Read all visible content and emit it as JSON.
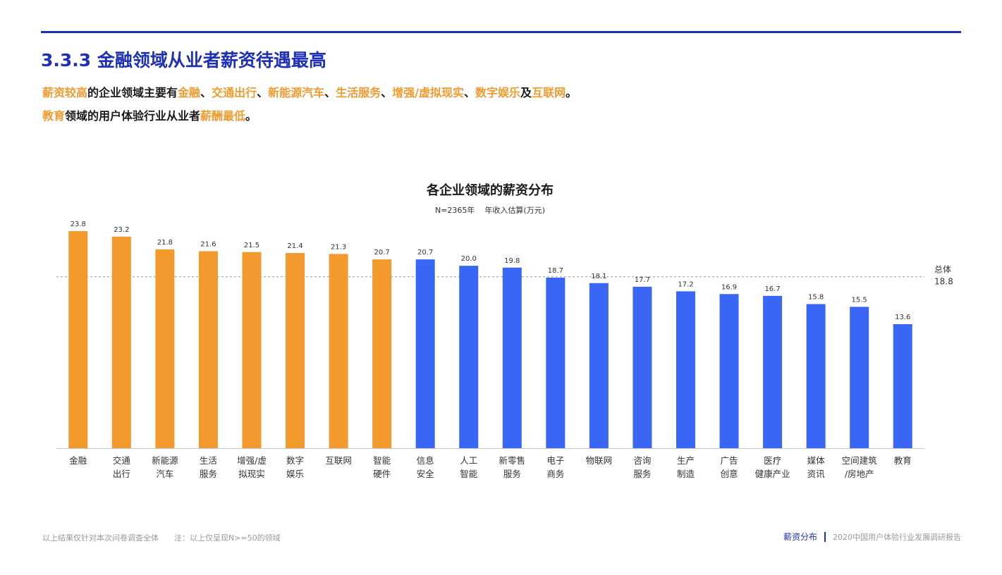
{
  "page_title": "3.3.3 金融领域从业者薪资待遇最高",
  "summary": {
    "line1": [
      {
        "text": "薪资较高",
        "hl": true
      },
      {
        "text": "的企业领域主要有",
        "hl": false
      },
      {
        "text": "金融",
        "hl": true
      },
      {
        "text": "、",
        "hl": false
      },
      {
        "text": "交通出行",
        "hl": true
      },
      {
        "text": "、",
        "hl": false
      },
      {
        "text": "新能源汽车",
        "hl": true
      },
      {
        "text": "、",
        "hl": false
      },
      {
        "text": "生活服务",
        "hl": true
      },
      {
        "text": "、",
        "hl": false
      },
      {
        "text": "增强/虚拟现实",
        "hl": true
      },
      {
        "text": "、",
        "hl": false
      },
      {
        "text": "数字娱乐",
        "hl": true
      },
      {
        "text": "及",
        "hl": false
      },
      {
        "text": "互联网",
        "hl": true
      },
      {
        "text": "。",
        "hl": false
      }
    ],
    "line2": [
      {
        "text": "教育",
        "hl": true
      },
      {
        "text": "领域的用户体验行业从业者",
        "hl": false
      },
      {
        "text": "薪酬最低",
        "hl": true
      },
      {
        "text": "。",
        "hl": false
      }
    ]
  },
  "chart_data": {
    "type": "bar",
    "title": "各企业领域的薪资分布",
    "subtitle_n": "N=2365年",
    "subtitle_unit": "年收入估算(万元)",
    "categories": [
      [
        "金融"
      ],
      [
        "交通",
        "出行"
      ],
      [
        "新能源",
        "汽车"
      ],
      [
        "生活",
        "服务"
      ],
      [
        "增强/虚",
        "拟现实"
      ],
      [
        "数字",
        "娱乐"
      ],
      [
        "互联网"
      ],
      [
        "智能",
        "硬件"
      ],
      [
        "信息",
        "安全"
      ],
      [
        "人工",
        "智能"
      ],
      [
        "新零售",
        "服务"
      ],
      [
        "电子",
        "商务"
      ],
      [
        "物联网"
      ],
      [
        "咨询",
        "服务"
      ],
      [
        "生产",
        "制造"
      ],
      [
        "广告",
        "创意"
      ],
      [
        "医疗",
        "健康产业"
      ],
      [
        "媒体",
        "资讯"
      ],
      [
        "空间建筑",
        "/房地产"
      ],
      [
        "教育"
      ]
    ],
    "values": [
      23.8,
      23.2,
      21.8,
      21.6,
      21.5,
      21.4,
      21.3,
      20.7,
      20.7,
      20.0,
      19.8,
      18.7,
      18.1,
      17.7,
      17.2,
      16.9,
      16.7,
      15.8,
      15.5,
      13.6
    ],
    "value_labels": [
      "23.8",
      "23.2",
      "21.8",
      "21.6",
      "21.5",
      "21.4",
      "21.3",
      "20.7",
      "20.7",
      "20.0",
      "19.8",
      "18.7",
      "18.1",
      "17.7",
      "17.2",
      "16.9",
      "16.7",
      "15.8",
      "15.5",
      "13.6"
    ],
    "highlight_count": 8,
    "colors": {
      "highlight": "#f29a2e",
      "normal": "#3a66f5",
      "reference": "#9a9a9a"
    },
    "reference": {
      "label": "总体",
      "value": 18.8,
      "value_label": "18.8"
    },
    "ylim": [
      0,
      24.6
    ]
  },
  "footer": {
    "note1": "以上结果仅针对本次问卷调查全体",
    "note2": "注：以上仅呈现N>=50的领域",
    "section": "薪资分布",
    "report": "2020中国用户体验行业发展调研报告"
  }
}
